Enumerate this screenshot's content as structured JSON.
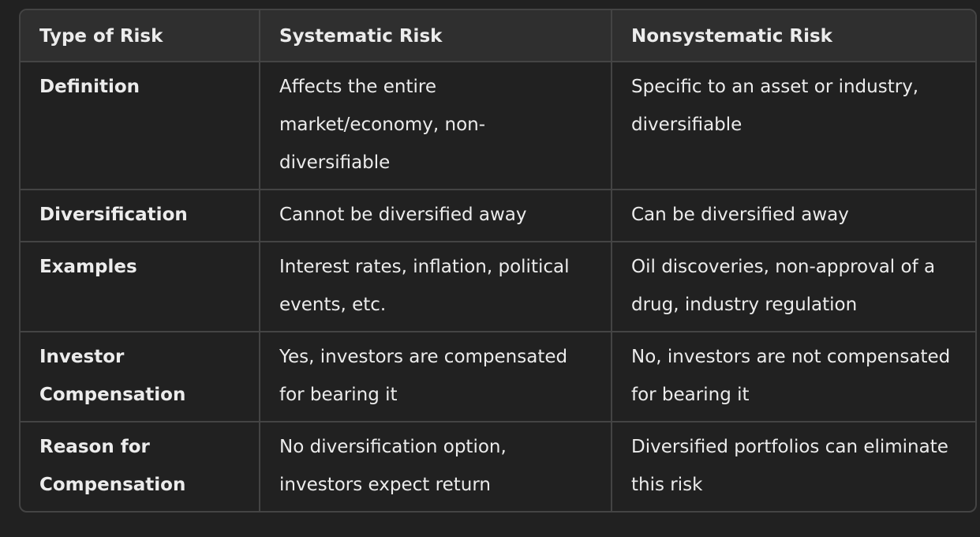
{
  "table": {
    "headers": [
      "Type of Risk",
      "Systematic Risk",
      "Nonsystematic Risk"
    ],
    "rows": [
      [
        "Definition",
        "Affects the entire market/economy, non-diversifiable",
        "Specific to an asset or industry, diversifiable"
      ],
      [
        "Diversification",
        "Cannot be diversified away",
        "Can be diversified away"
      ],
      [
        "Examples",
        "Interest rates, inflation, political events, etc.",
        "Oil discoveries, non-approval of a drug, industry regulation"
      ],
      [
        "Investor Compensation",
        "Yes, investors are compensated for bearing it",
        "No, investors are not compensated for bearing it"
      ],
      [
        "Reason for Compensation",
        "No diversification option, investors expect return",
        "Diversified portfolios can eliminate this risk"
      ]
    ]
  }
}
